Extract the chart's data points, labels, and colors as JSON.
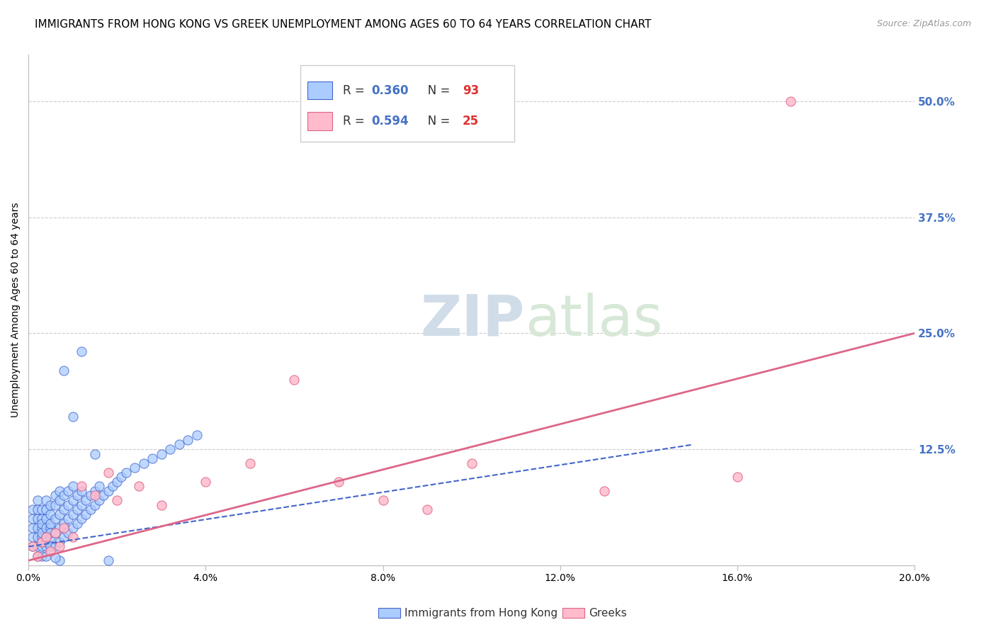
{
  "title": "IMMIGRANTS FROM HONG KONG VS GREEK UNEMPLOYMENT AMONG AGES 60 TO 64 YEARS CORRELATION CHART",
  "source": "Source: ZipAtlas.com",
  "ylabel": "Unemployment Among Ages 60 to 64 years",
  "xlim": [
    0.0,
    0.2
  ],
  "ylim": [
    0.0,
    0.55
  ],
  "right_yticks": [
    0.0,
    0.125,
    0.25,
    0.375,
    0.5
  ],
  "right_yticklabels": [
    "",
    "12.5%",
    "25.0%",
    "37.5%",
    "50.0%"
  ],
  "grid_color": "#cccccc",
  "background_color": "#ffffff",
  "hk_color": "#aaccff",
  "hk_edge_color": "#4466cc",
  "greek_color": "#ffbbcc",
  "greek_edge_color": "#dd6688",
  "hk_R": 0.36,
  "hk_N": 93,
  "greek_R": 0.594,
  "greek_N": 25,
  "legend_label_hk": "Immigrants from Hong Kong",
  "legend_label_greek": "Greeks",
  "title_fontsize": 11,
  "axis_label_fontsize": 10,
  "tick_fontsize": 10,
  "right_tick_color": "#4472c4",
  "hk_scatter_x": [
    0.001,
    0.001,
    0.001,
    0.001,
    0.001,
    0.002,
    0.002,
    0.002,
    0.002,
    0.002,
    0.002,
    0.002,
    0.003,
    0.003,
    0.003,
    0.003,
    0.003,
    0.003,
    0.003,
    0.003,
    0.003,
    0.004,
    0.004,
    0.004,
    0.004,
    0.004,
    0.004,
    0.004,
    0.005,
    0.005,
    0.005,
    0.005,
    0.005,
    0.005,
    0.005,
    0.006,
    0.006,
    0.006,
    0.006,
    0.006,
    0.007,
    0.007,
    0.007,
    0.007,
    0.007,
    0.008,
    0.008,
    0.008,
    0.008,
    0.009,
    0.009,
    0.009,
    0.009,
    0.01,
    0.01,
    0.01,
    0.01,
    0.011,
    0.011,
    0.011,
    0.012,
    0.012,
    0.012,
    0.013,
    0.013,
    0.014,
    0.014,
    0.015,
    0.015,
    0.016,
    0.016,
    0.017,
    0.018,
    0.019,
    0.02,
    0.021,
    0.022,
    0.024,
    0.026,
    0.028,
    0.03,
    0.032,
    0.034,
    0.036,
    0.038,
    0.01,
    0.008,
    0.012,
    0.015,
    0.007,
    0.018,
    0.004,
    0.006
  ],
  "hk_scatter_y": [
    0.02,
    0.03,
    0.04,
    0.05,
    0.06,
    0.01,
    0.02,
    0.03,
    0.04,
    0.05,
    0.06,
    0.07,
    0.01,
    0.02,
    0.03,
    0.04,
    0.05,
    0.06,
    0.025,
    0.045,
    0.035,
    0.02,
    0.03,
    0.04,
    0.05,
    0.06,
    0.07,
    0.025,
    0.02,
    0.03,
    0.04,
    0.055,
    0.065,
    0.035,
    0.045,
    0.02,
    0.035,
    0.05,
    0.065,
    0.075,
    0.025,
    0.04,
    0.055,
    0.07,
    0.08,
    0.03,
    0.045,
    0.06,
    0.075,
    0.035,
    0.05,
    0.065,
    0.08,
    0.04,
    0.055,
    0.07,
    0.085,
    0.045,
    0.06,
    0.075,
    0.05,
    0.065,
    0.08,
    0.055,
    0.07,
    0.06,
    0.075,
    0.065,
    0.08,
    0.07,
    0.085,
    0.075,
    0.08,
    0.085,
    0.09,
    0.095,
    0.1,
    0.105,
    0.11,
    0.115,
    0.12,
    0.125,
    0.13,
    0.135,
    0.14,
    0.16,
    0.21,
    0.23,
    0.12,
    0.005,
    0.005,
    0.01,
    0.008
  ],
  "greek_scatter_x": [
    0.001,
    0.002,
    0.003,
    0.004,
    0.005,
    0.006,
    0.007,
    0.008,
    0.01,
    0.012,
    0.015,
    0.018,
    0.02,
    0.025,
    0.03,
    0.04,
    0.05,
    0.06,
    0.07,
    0.08,
    0.09,
    0.1,
    0.13,
    0.16,
    0.172
  ],
  "greek_scatter_y": [
    0.02,
    0.01,
    0.025,
    0.03,
    0.015,
    0.035,
    0.02,
    0.04,
    0.03,
    0.085,
    0.075,
    0.1,
    0.07,
    0.085,
    0.065,
    0.09,
    0.11,
    0.2,
    0.09,
    0.07,
    0.06,
    0.11,
    0.08,
    0.095,
    0.5
  ],
  "hk_line_x": [
    0.0,
    0.15
  ],
  "hk_line_y": [
    0.02,
    0.13
  ],
  "greek_line_x": [
    0.0,
    0.2
  ],
  "greek_line_y": [
    0.005,
    0.25
  ]
}
